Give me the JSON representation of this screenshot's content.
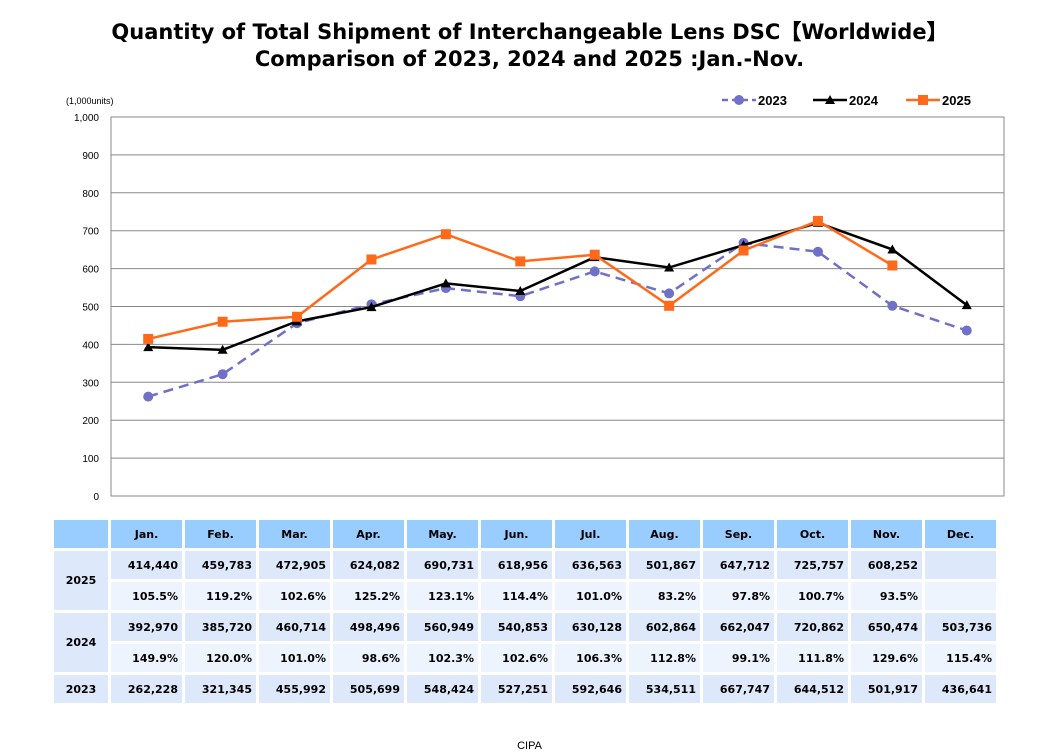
{
  "title_line1": "Quantity of Total Shipment of Interchangeable Lens DSC【Worldwide】",
  "title_line2": "Comparison of 2023, 2024 and 2025 :Jan.-Nov.",
  "footer": "CIPA",
  "chart_data": {
    "type": "line",
    "ylabel": "(1,000units)",
    "ylim": [
      0,
      1000
    ],
    "yticks": [
      "0",
      "100",
      "200",
      "300",
      "400",
      "500",
      "600",
      "700",
      "800",
      "900",
      "1,000"
    ],
    "grid": true,
    "legend_position": "top-right",
    "categories": [
      "Jan.",
      "Feb.",
      "Mar.",
      "Apr.",
      "May.",
      "Jun.",
      "Jul.",
      "Aug.",
      "Sep.",
      "Oct.",
      "Nov.",
      "Dec."
    ],
    "series": [
      {
        "name": "2023",
        "color": "#7070c8",
        "style": "dashed-circle",
        "values": [
          262.228,
          321.345,
          455.992,
          505.699,
          548.424,
          527.251,
          592.646,
          534.511,
          667.747,
          644.512,
          501.917,
          436.641
        ]
      },
      {
        "name": "2024",
        "color": "#000000",
        "style": "solid-triangle",
        "values": [
          392.97,
          385.72,
          460.714,
          498.496,
          560.949,
          540.853,
          630.128,
          602.864,
          662.047,
          720.862,
          650.474,
          503.736
        ]
      },
      {
        "name": "2025",
        "color": "#ff6a1a",
        "style": "solid-square",
        "values": [
          414.44,
          459.783,
          472.905,
          624.082,
          690.731,
          618.956,
          636.563,
          501.867,
          647.712,
          725.757,
          608.252,
          null
        ]
      }
    ]
  },
  "table": {
    "months": [
      "Jan.",
      "Feb.",
      "Mar.",
      "Apr.",
      "May.",
      "Jun.",
      "Jul.",
      "Aug.",
      "Sep.",
      "Oct.",
      "Nov.",
      "Dec."
    ],
    "rows": [
      {
        "year": "2025",
        "values": [
          "414,440",
          "459,783",
          "472,905",
          "624,082",
          "690,731",
          "618,956",
          "636,563",
          "501,867",
          "647,712",
          "725,757",
          "608,252",
          ""
        ],
        "pct": [
          "105.5%",
          "119.2%",
          "102.6%",
          "125.2%",
          "123.1%",
          "114.4%",
          "101.0%",
          "83.2%",
          "97.8%",
          "100.7%",
          "93.5%",
          ""
        ]
      },
      {
        "year": "2024",
        "values": [
          "392,970",
          "385,720",
          "460,714",
          "498,496",
          "560,949",
          "540,853",
          "630,128",
          "602,864",
          "662,047",
          "720,862",
          "650,474",
          "503,736"
        ],
        "pct": [
          "149.9%",
          "120.0%",
          "101.0%",
          "98.6%",
          "102.3%",
          "102.6%",
          "106.3%",
          "112.8%",
          "99.1%",
          "111.8%",
          "129.6%",
          "115.4%"
        ]
      },
      {
        "year": "2023",
        "values": [
          "262,228",
          "321,345",
          "455,992",
          "505,699",
          "548,424",
          "527,251",
          "592,646",
          "534,511",
          "667,747",
          "644,512",
          "501,917",
          "436,641"
        ]
      }
    ]
  }
}
